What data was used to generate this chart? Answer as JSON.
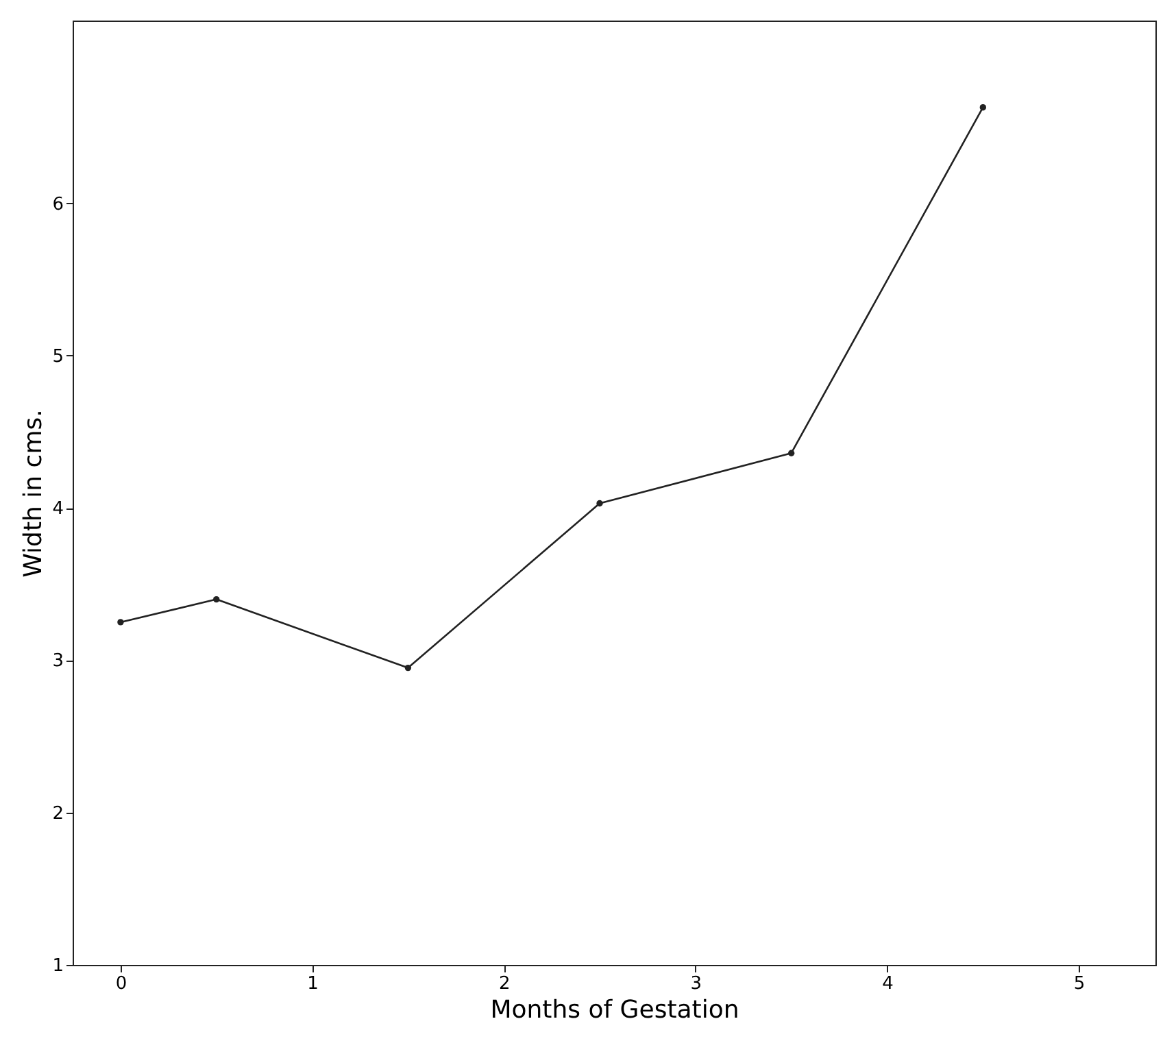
{
  "chart_data": {
    "type": "line",
    "xlabel": "Months of Gestation",
    "ylabel": "Width in cms.",
    "x": [
      0,
      0.5,
      1.5,
      2.5,
      3.5,
      4.5
    ],
    "series": [
      {
        "color": "#222222",
        "values": [
          3.25,
          3.4,
          2.95,
          4.03,
          4.36,
          6.63
        ]
      }
    ],
    "xlim": [
      -0.25,
      5.4
    ],
    "ylim": [
      1,
      7.2
    ],
    "xticks": [
      0,
      1,
      2,
      3,
      4,
      5
    ],
    "yticks": [
      1,
      2,
      3,
      4,
      5,
      6
    ],
    "grid": false,
    "legend": false,
    "marker": "circle",
    "line_style": "solid"
  }
}
